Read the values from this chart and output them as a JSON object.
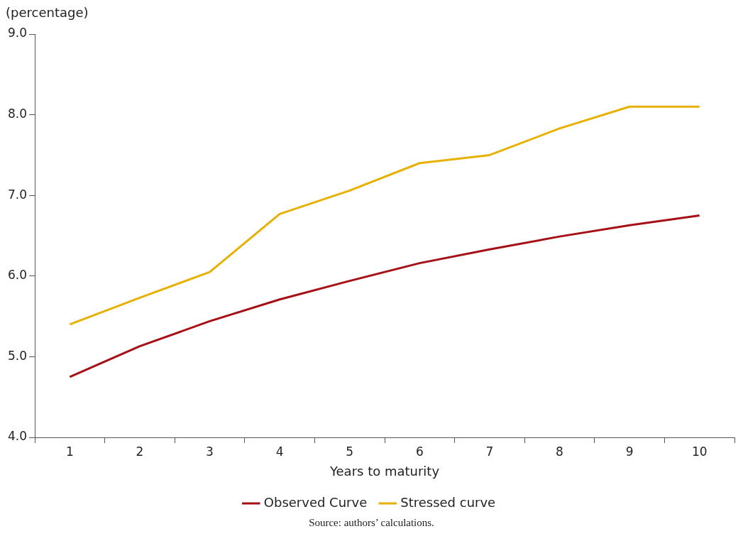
{
  "chart_data": {
    "type": "line",
    "ylabel": "(percentage)",
    "xlabel": "Years to maturity",
    "categories": [
      "1",
      "2",
      "3",
      "4",
      "5",
      "6",
      "7",
      "8",
      "9",
      "10"
    ],
    "series": [
      {
        "name": "Observed Curve",
        "color": "#a50f15",
        "values": [
          4.75,
          5.13,
          5.44,
          5.71,
          5.94,
          6.16,
          6.33,
          6.49,
          6.63,
          6.75
        ]
      },
      {
        "name": "Stressed curve",
        "color": "#e8b000",
        "values": [
          5.4,
          5.73,
          6.05,
          6.77,
          7.06,
          7.4,
          7.5,
          7.83,
          8.1,
          8.1
        ]
      }
    ],
    "ylim": [
      4,
      9
    ],
    "yticks": [
      {
        "value": 4,
        "label": "4.0"
      },
      {
        "value": 5,
        "label": "5.0"
      },
      {
        "value": 6,
        "label": "6.0"
      },
      {
        "value": 7,
        "label": "7.0"
      },
      {
        "value": 8,
        "label": "8.0"
      },
      {
        "value": 9,
        "label": "9.0"
      }
    ],
    "grid": false,
    "legend": "bottom",
    "marker": "none",
    "line_style": "solid",
    "annotations": [
      "Source: authors’ calculations."
    ]
  }
}
